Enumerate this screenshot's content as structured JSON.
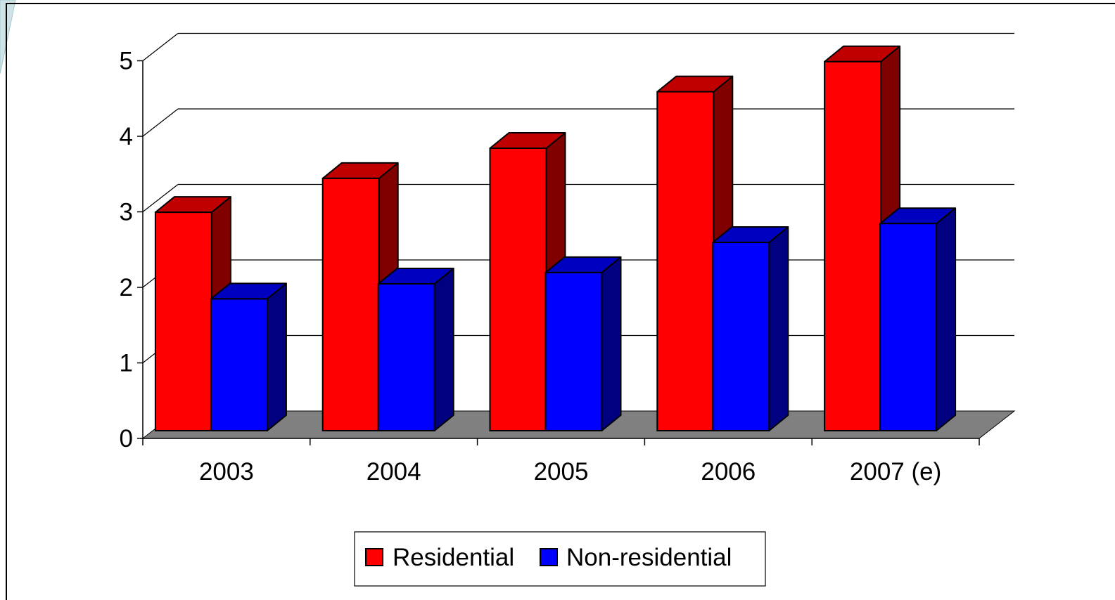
{
  "chart_data": {
    "type": "bar",
    "title": "",
    "xlabel": "",
    "ylabel": "",
    "categories": [
      "2003",
      "2004",
      "2005",
      "2006",
      "2007 (e)"
    ],
    "series": [
      {
        "name": "Residential",
        "values": [
          2.9,
          3.35,
          3.75,
          4.5,
          4.9
        ],
        "color": "#ff0000",
        "side_color": "#800000",
        "top_color": "#c00000"
      },
      {
        "name": "Non-residential",
        "values": [
          1.75,
          1.95,
          2.1,
          2.5,
          2.75
        ],
        "color": "#0000ff",
        "side_color": "#000080",
        "top_color": "#0000c0"
      }
    ],
    "ylim": [
      0,
      5
    ],
    "yticks": [
      "0",
      "1",
      "2",
      "3",
      "4",
      "5"
    ],
    "grid": true,
    "three_d": true,
    "floor_color": "#808080",
    "legend_position": "bottom-center"
  },
  "colors": {
    "background": "#ffffff",
    "frame": "#000000",
    "accent_curve": "#cfe4e6"
  }
}
